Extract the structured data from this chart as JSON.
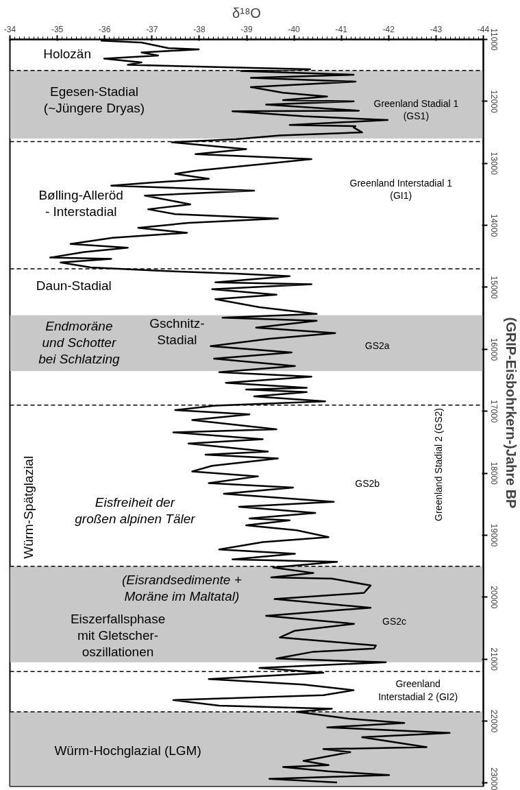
{
  "chart_data": {
    "type": "line",
    "xlabel": "δ¹⁸O",
    "ylabel": "(GRIP-Eisbohrkern-)Jahre BP",
    "xlim": [
      -34,
      -44
    ],
    "xticks": [
      -34,
      -35,
      -36,
      -37,
      -38,
      -39,
      -40,
      -41,
      -42,
      -43,
      -44
    ],
    "ylim": [
      23050,
      11000
    ],
    "yticks": [
      11000,
      12000,
      13000,
      14000,
      15000,
      16000,
      17000,
      18000,
      19000,
      20000,
      21000,
      22000,
      23000
    ],
    "series": [
      {
        "color": "#000000",
        "x": [
          -35.92,
          -36.78,
          -37.35,
          -37.99,
          -36.78,
          -37.13,
          -35.99,
          -36.78,
          -36.49,
          -38.06,
          -40.34,
          -38.88,
          -41.26,
          -39.09,
          -41.3,
          -39.09,
          -39.77,
          -40.7,
          -39.77,
          -41.26,
          -39.41,
          -41.37,
          -38.7,
          -40.2,
          -41.98,
          -39.91,
          -41.3,
          -41.26,
          -41.44,
          -39.7,
          -38.77,
          -37.42,
          -38.99,
          -37.92,
          -40.37,
          -39.34,
          -37.92,
          -37.49,
          -38.2,
          -36.99,
          -36.14,
          -39.16,
          -36.85,
          -37.81,
          -36.92,
          -37.49,
          -39.66,
          -37.77,
          -36.71,
          -37.74,
          -36.17,
          -35.28,
          -36.49,
          -35.57,
          -34.85,
          -36.14,
          -35.07,
          -35.71,
          -37.06,
          -38.77,
          -39.91,
          -38.34,
          -40.37,
          -38.27,
          -39.63,
          -38.34,
          -39.27,
          -40.48,
          -38.49,
          -40.48,
          -39.2,
          -40.87,
          -39.48,
          -38.24,
          -39.95,
          -38.31,
          -40.02,
          -38.42,
          -40.37,
          -38.56,
          -40.27,
          -38.99,
          -40.27,
          -39.16,
          -40.66,
          -38.34,
          -37.49,
          -39.06,
          -37.85,
          -39.63,
          -37.45,
          -39.34,
          -37.77,
          -39.45,
          -38.13,
          -39.66,
          -38.27,
          -37.85,
          -39.24,
          -38.2,
          -39.98,
          -38.52,
          -40.84,
          -38.84,
          -40.45,
          -39.06,
          -39.91,
          -38.99,
          -40.06,
          -40.73,
          -39.34,
          -38.42,
          -40.02,
          -38.7,
          -40.91,
          -39.56,
          -40.41,
          -39.52,
          -40.8,
          -41.62,
          -41.48,
          -39.59,
          -41.62,
          -39.41,
          -41.27,
          -40.02,
          -39.7,
          -41.73,
          -41.69,
          -40.41,
          -39.63,
          -41.94,
          -39.27,
          -40.62,
          -38.2,
          -40.2,
          -41.26,
          -40.62,
          -37.45,
          -38.42,
          -40.8,
          -40.06,
          -41.16,
          -42.33,
          -40.7,
          -43.29,
          -41.44,
          -42.8,
          -40.62,
          -41.19,
          -40.2,
          -40.73,
          -39.77,
          -40.73,
          -42.01,
          -39.48,
          -40.91
        ],
        "values": [
          11020,
          11050,
          11140,
          11160,
          11210,
          11260,
          11310,
          11370,
          11410,
          11440,
          11480,
          11510,
          11570,
          11620,
          11680,
          11770,
          11860,
          11920,
          11980,
          12000,
          12050,
          12150,
          12160,
          12240,
          12300,
          12380,
          12400,
          12420,
          12500,
          12550,
          12610,
          12660,
          12770,
          12850,
          12930,
          13010,
          13120,
          13170,
          13250,
          13310,
          13360,
          13440,
          13520,
          13660,
          13740,
          13820,
          13890,
          13960,
          14040,
          14120,
          14200,
          14300,
          14360,
          14430,
          14520,
          14540,
          14600,
          14680,
          14730,
          14780,
          14820,
          14920,
          14950,
          15030,
          15120,
          15190,
          15320,
          15430,
          15490,
          15540,
          15650,
          15740,
          15830,
          15950,
          16050,
          16150,
          16270,
          16370,
          16440,
          16540,
          16620,
          16650,
          16690,
          16760,
          16840,
          16910,
          16980,
          17050,
          17140,
          17290,
          17340,
          17450,
          17520,
          17650,
          17700,
          17760,
          17880,
          17970,
          18050,
          18160,
          18230,
          18330,
          18460,
          18540,
          18640,
          18730,
          18760,
          18840,
          18920,
          19030,
          19110,
          19230,
          19300,
          19390,
          19430,
          19520,
          19610,
          19680,
          19700,
          19810,
          19930,
          20030,
          20170,
          20300,
          20430,
          20540,
          20650,
          20780,
          20830,
          20880,
          20990,
          21050,
          21140,
          21220,
          21320,
          21410,
          21500,
          21580,
          21660,
          21750,
          21800,
          21850,
          21960,
          22030,
          22100,
          22190,
          22260,
          22420,
          22450,
          22500,
          22640,
          22710,
          22740,
          22810,
          22870,
          22930,
          22990
        ]
      }
    ],
    "bands": [
      {
        "axis": "y",
        "from": 11500,
        "to": 12600,
        "color": "#c8c8c8"
      },
      {
        "axis": "y",
        "from": 15450,
        "to": 16350,
        "color": "#c8c8c8"
      },
      {
        "axis": "y",
        "from": 19500,
        "to": 21050,
        "color": "#c8c8c8"
      },
      {
        "axis": "y",
        "from": 21850,
        "to": 23050,
        "color": "#c8c8c8"
      }
    ],
    "ref_lines": [
      {
        "axis": "y",
        "value": 11500,
        "color": "#000000",
        "line_style": "dashed"
      },
      {
        "axis": "y",
        "value": 12650,
        "color": "#000000",
        "line_style": "dashed"
      },
      {
        "axis": "y",
        "value": 14700,
        "color": "#000000",
        "line_style": "dashed"
      },
      {
        "axis": "y",
        "value": 16900,
        "color": "#000000",
        "line_style": "dashed"
      },
      {
        "axis": "y",
        "value": 19500,
        "color": "#000000",
        "line_style": "dashed"
      },
      {
        "axis": "y",
        "value": 21200,
        "color": "#000000",
        "line_style": "dashed"
      },
      {
        "axis": "y",
        "value": 21850,
        "color": "#000000",
        "line_style": "dashed"
      }
    ],
    "annotations": [
      "Holozän",
      "Egesen-Stadial\n(~Jüngere Dryas)",
      "Greenland Stadial 1\n(GS1)",
      "Bølling-Alleröd\n- Interstadial",
      "Greenland Interstadial 1\n(GI1)",
      "Daun-Stadial",
      "Endmoräne\nund Schotter\nbei Schlatzing",
      "Gschnitz-\nStadial",
      "GS2a",
      "Greenland Stadial 2 (GS2)",
      "GS2b",
      "Eisfreiheit der\ngroßen alpinen Täler",
      "Würm-Spätglazial",
      "(Eisrandsedimente +\nMoräne im Maltatal)",
      "Eiszerfallsphase\nmit Gletscher-\noszillationen",
      "GS2c",
      "Greenland\nInterstadial 2 (GI2)",
      "Würm-Hochglazial (LGM)"
    ]
  }
}
